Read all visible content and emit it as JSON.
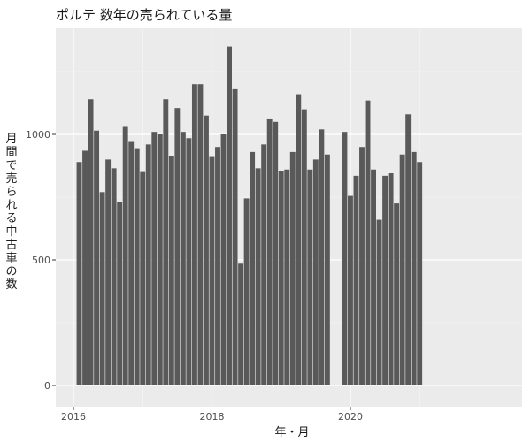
{
  "chart_data": {
    "type": "bar",
    "title": "ポルテ 数年の売られている量",
    "xlabel": "年・月",
    "ylabel": "月間で売られる中古車 の数",
    "ylim": [
      0,
      1400
    ],
    "y_ticks": [
      0,
      500,
      1000
    ],
    "x_tick_labels": [
      "2016",
      "2018",
      "2020"
    ],
    "grid": true,
    "bar_color": "#595959",
    "panel_color": "#ebebeb",
    "categories": [
      "2016-02",
      "2016-03",
      "2016-04",
      "2016-05",
      "2016-06",
      "2016-07",
      "2016-08",
      "2016-09",
      "2016-10",
      "2016-11",
      "2016-12",
      "2017-01",
      "2017-02",
      "2017-03",
      "2017-04",
      "2017-05",
      "2017-06",
      "2017-07",
      "2017-08",
      "2017-09",
      "2017-10",
      "2017-11",
      "2017-12",
      "2018-01",
      "2018-02",
      "2018-03",
      "2018-04",
      "2018-05",
      "2018-06",
      "2018-07",
      "2018-08",
      "2018-09",
      "2018-10",
      "2018-11",
      "2018-12",
      "2019-01",
      "2019-02",
      "2019-03",
      "2019-04",
      "2019-05",
      "2019-06",
      "2019-07",
      "2019-08",
      "2019-09",
      "2019-10",
      "2019-11",
      "2019-12",
      "2020-01",
      "2020-02",
      "2020-03",
      "2020-04",
      "2020-05",
      "2020-06",
      "2020-07",
      "2020-08",
      "2020-09",
      "2020-10",
      "2020-11",
      "2020-12",
      "2021-01"
    ],
    "values": [
      890,
      935,
      1140,
      1015,
      770,
      900,
      865,
      730,
      1030,
      970,
      945,
      850,
      960,
      1010,
      1000,
      1140,
      915,
      1105,
      1010,
      985,
      1200,
      1200,
      1075,
      910,
      950,
      1000,
      1350,
      1180,
      485,
      745,
      930,
      865,
      960,
      1060,
      1050,
      855,
      860,
      930,
      1160,
      1100,
      860,
      900,
      1020,
      920,
      null,
      null,
      1010,
      755,
      835,
      950,
      1135,
      860,
      660,
      835,
      845,
      725,
      920,
      1080,
      930,
      890
    ]
  }
}
